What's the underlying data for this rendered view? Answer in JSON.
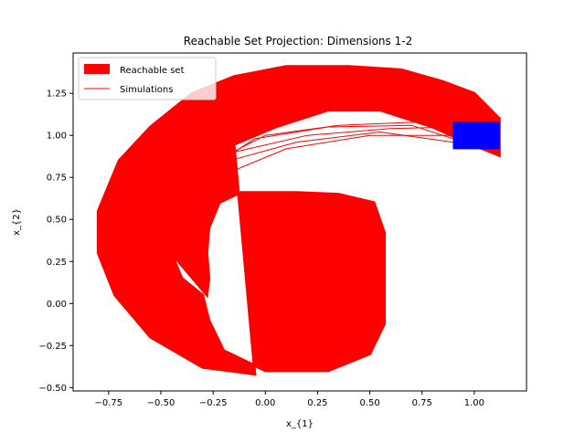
{
  "chart_data": {
    "type": "area",
    "title": "Reachable Set Projection: Dimensions 1-2",
    "xlabel": "x_{1}",
    "ylabel": "x_{2}",
    "xlim": [
      -0.92,
      1.25
    ],
    "ylim": [
      -0.52,
      1.49
    ],
    "xticks": [
      "−0.75",
      "−0.50",
      "−0.25",
      "0.00",
      "0.25",
      "0.50",
      "0.75",
      "1.00"
    ],
    "xtick_values": [
      -0.75,
      -0.5,
      -0.25,
      0.0,
      0.25,
      0.5,
      0.75,
      1.0
    ],
    "yticks": [
      "−0.50",
      "−0.25",
      "0.00",
      "0.25",
      "0.50",
      "0.75",
      "1.00",
      "1.25"
    ],
    "ytick_values": [
      -0.5,
      -0.25,
      0.0,
      0.25,
      0.5,
      0.75,
      1.0,
      1.25
    ],
    "grid": false,
    "legend_position": "top-left",
    "legend": [
      {
        "label": "Reachable set",
        "kind": "patch",
        "color": "#ff0000"
      },
      {
        "label": "Simulations",
        "kind": "line",
        "color": "#ff0000"
      }
    ],
    "colors": {
      "reachable": "#ff0000",
      "simulations": "#ff0000",
      "initial_set": "#0000ff"
    },
    "reachable_set_outer": [
      [
        -0.05,
        -0.42
      ],
      [
        -0.3,
        -0.38
      ],
      [
        -0.55,
        -0.2
      ],
      [
        -0.72,
        0.05
      ],
      [
        -0.8,
        0.3
      ],
      [
        -0.8,
        0.55
      ],
      [
        -0.7,
        0.85
      ],
      [
        -0.55,
        1.05
      ],
      [
        -0.35,
        1.25
      ],
      [
        -0.15,
        1.35
      ],
      [
        0.1,
        1.41
      ],
      [
        0.4,
        1.41
      ],
      [
        0.65,
        1.39
      ],
      [
        0.85,
        1.32
      ],
      [
        1.0,
        1.25
      ],
      [
        1.12,
        1.1
      ],
      [
        1.12,
        0.88
      ],
      [
        0.98,
        0.95
      ],
      [
        0.8,
        1.05
      ],
      [
        0.55,
        1.15
      ],
      [
        0.3,
        1.15
      ],
      [
        0.05,
        1.05
      ],
      [
        -0.18,
        0.93
      ],
      [
        -0.3,
        0.82
      ],
      [
        -0.4,
        0.6
      ],
      [
        -0.43,
        0.45
      ],
      [
        -0.45,
        0.3
      ],
      [
        -0.4,
        0.15
      ],
      [
        -0.3,
        0.05
      ],
      [
        -0.27,
        -0.1
      ],
      [
        -0.2,
        -0.28
      ],
      [
        0.0,
        -0.4
      ],
      [
        0.3,
        -0.4
      ],
      [
        0.5,
        -0.3
      ],
      [
        0.57,
        -0.12
      ],
      [
        0.57,
        0.2
      ],
      [
        0.57,
        0.42
      ],
      [
        0.52,
        0.6
      ],
      [
        0.35,
        0.65
      ],
      [
        0.15,
        0.66
      ],
      [
        -0.12,
        0.66
      ],
      [
        -0.22,
        0.6
      ],
      [
        -0.27,
        0.45
      ],
      [
        -0.28,
        0.3
      ],
      [
        -0.27,
        0.15
      ],
      [
        -0.28,
        0.05
      ],
      [
        -0.45,
        0.3
      ],
      [
        -0.45,
        0.45
      ],
      [
        -0.4,
        0.62
      ],
      [
        -0.3,
        0.82
      ],
      [
        -0.15,
        0.95
      ]
    ],
    "simulation_traces": [
      [
        [
          0.92,
          1.05
        ],
        [
          0.6,
          1.04
        ],
        [
          0.2,
          1.0
        ],
        [
          -0.15,
          0.9
        ],
        [
          -0.3,
          0.78
        ],
        [
          -0.42,
          0.5
        ],
        [
          -0.4,
          0.3
        ]
      ],
      [
        [
          1.1,
          0.9
        ],
        [
          0.7,
          1.06
        ],
        [
          0.3,
          1.05
        ],
        [
          -0.05,
          0.98
        ],
        [
          -0.25,
          0.82
        ],
        [
          -0.38,
          0.6
        ],
        [
          -0.43,
          0.35
        ]
      ],
      [
        [
          0.95,
          0.95
        ],
        [
          0.55,
          1.02
        ],
        [
          0.15,
          0.96
        ],
        [
          -0.2,
          0.84
        ],
        [
          -0.36,
          0.64
        ],
        [
          -0.45,
          0.42
        ]
      ],
      [
        [
          1.05,
          1.08
        ],
        [
          0.75,
          1.08
        ],
        [
          0.35,
          1.06
        ],
        [
          0.0,
          1.0
        ],
        [
          -0.22,
          0.86
        ],
        [
          -0.35,
          0.66
        ],
        [
          -0.44,
          0.46
        ]
      ],
      [
        [
          0.9,
          1.0
        ],
        [
          0.5,
          1.0
        ],
        [
          0.1,
          0.92
        ],
        [
          -0.25,
          0.74
        ],
        [
          -0.42,
          0.48
        ],
        [
          -0.45,
          0.25
        ]
      ]
    ],
    "initial_set": [
      [
        0.9,
        1.08
      ],
      [
        1.12,
        1.08
      ],
      [
        1.12,
        0.92
      ],
      [
        0.9,
        0.92
      ]
    ]
  }
}
